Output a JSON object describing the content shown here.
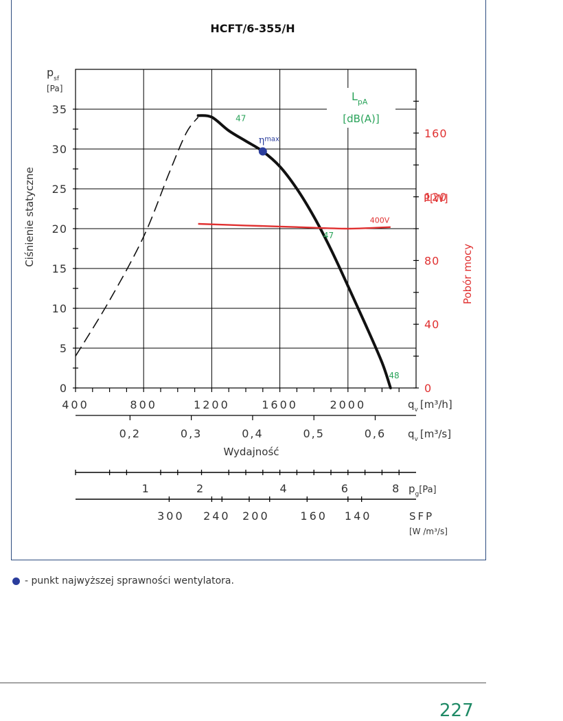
{
  "chart_data": {
    "type": "line",
    "title": "HCFT/6-355/H",
    "ylabel": "Ciśnienie statyczne",
    "y_symbol": "p",
    "y_symbol_sub": "sf",
    "y_unit": "[Pa]",
    "ylim": [
      0,
      40
    ],
    "y_ticks": [
      "0",
      "5",
      "10",
      "15",
      "20",
      "25",
      "30",
      "35"
    ],
    "x_symbol": "q",
    "x_symbol_sub": "v",
    "x_unit": "[m³/h]",
    "xlim": [
      400,
      2400
    ],
    "x_ticks": [
      "400",
      "800",
      "1200",
      "1600",
      "2000"
    ],
    "x2_unit": "[m³/s]",
    "x2_ticks": [
      {
        "label": "0,2",
        "value": 0.2
      },
      {
        "label": "0,3",
        "value": 0.3
      },
      {
        "label": "0,4",
        "value": 0.4
      },
      {
        "label": "0,5",
        "value": 0.5
      },
      {
        "label": "0,6",
        "value": 0.6
      }
    ],
    "xlabel": "Wydajność",
    "y2_label": "Pobór mocy",
    "y2_unit": "P[W]",
    "y2_ticks": [
      "0",
      "40",
      "80",
      "120",
      "160"
    ],
    "noise_label": "L",
    "noise_label_sub": "pA",
    "noise_unit": "[dB(A)]",
    "pressure_curve_stall": {
      "name": "",
      "x": [
        400,
        600,
        800,
        950,
        1050,
        1120
      ],
      "y": [
        4,
        11,
        19,
        27,
        32,
        34
      ]
    },
    "pressure_curve": {
      "name": "",
      "x": [
        1120,
        1200,
        1300,
        1400,
        1500,
        1600,
        1700,
        1800,
        1900,
        2000,
        2100,
        2200,
        2250
      ],
      "y": [
        34.2,
        34.0,
        32.3,
        31.0,
        29.7,
        27.8,
        25.0,
        21.5,
        17.4,
        12.8,
        8.1,
        3.2,
        0
      ]
    },
    "power_curve": {
      "name": "400V",
      "x": [
        1120,
        1400,
        1700,
        2000,
        2250
      ],
      "y": [
        103,
        102,
        101,
        100,
        101
      ]
    },
    "max_efficiency_point": {
      "label": "η",
      "label_sub": "max",
      "x": 1500,
      "y": 29.7
    },
    "noise_labels": [
      {
        "text": "47",
        "x": 1340,
        "y": 33.5
      },
      {
        "text": "47",
        "x": 1855,
        "y": 18.8
      },
      {
        "text": "48",
        "x": 2240,
        "y": 1.2
      }
    ],
    "pg_scale": {
      "unit": "[Pa]",
      "symbol": "p",
      "symbol_sub": "g",
      "ticks": [
        {
          "label": "1",
          "x": 810
        },
        {
          "label": "2",
          "x": 1130
        },
        {
          "label": "4",
          "x": 1620
        },
        {
          "label": "6",
          "x": 1980
        },
        {
          "label": "8",
          "x": 2280
        }
      ]
    },
    "sfp_scale": {
      "label": "SFP",
      "unit": "[W /m³/s]",
      "ticks": [
        {
          "label": "300",
          "x": 960
        },
        {
          "label": "240",
          "x": 1230
        },
        {
          "label": "200",
          "x": 1460
        },
        {
          "label": "160",
          "x": 1800
        },
        {
          "label": "140",
          "x": 2060
        }
      ]
    },
    "grid": true
  },
  "footnote": "- punkt najwyższej sprawności wentylatora.",
  "page_number": "227",
  "colors": {
    "frame": "#2b4a7e",
    "noise_green": "#2aa35a",
    "power_red": "#e03030",
    "point_blue": "#2a3d9c",
    "page_number": "#1f8a66"
  }
}
